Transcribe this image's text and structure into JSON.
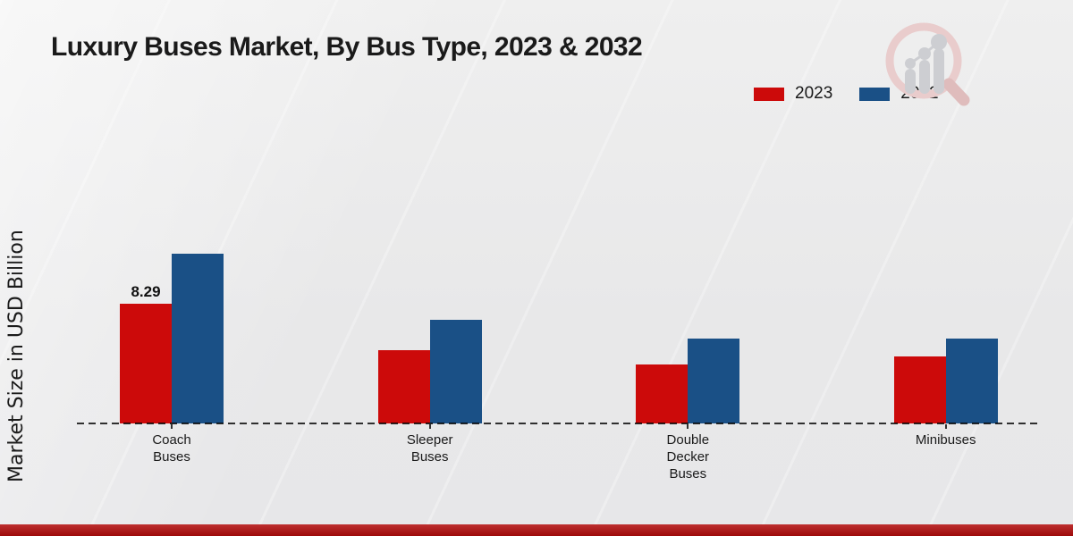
{
  "title": "Luxury Buses Market, By Bus Type, 2023 & 2032",
  "legend": {
    "items": [
      {
        "label": "2023",
        "color": "#cc0a0a"
      },
      {
        "label": "2032",
        "color": "#1a5086"
      }
    ]
  },
  "chart_data": {
    "type": "bar",
    "title": "Luxury Buses Market, By Bus Type, 2023 & 2032",
    "xlabel": "",
    "ylabel": "Market Size in USD Billion",
    "categories": [
      "Coach Buses",
      "Sleeper Buses",
      "Double Decker Buses",
      "Minibuses"
    ],
    "category_label_lines": [
      [
        "Coach",
        "Buses"
      ],
      [
        "Sleeper",
        "Buses"
      ],
      [
        "Double",
        "Decker",
        "Buses"
      ],
      [
        "Minibuses"
      ]
    ],
    "series": [
      {
        "name": "2023",
        "color": "#cc0a0a",
        "values": [
          8.29,
          5.07,
          4.08,
          4.64
        ]
      },
      {
        "name": "2032",
        "color": "#1a5086",
        "values": [
          11.76,
          7.18,
          5.88,
          5.88
        ]
      }
    ],
    "data_labels": {
      "visible": [
        {
          "series": "2023",
          "category": "Coach Buses",
          "text": "8.29"
        }
      ]
    },
    "ylim": [
      0,
      13
    ],
    "grid": false,
    "legend_position": "top-right",
    "baseline_style": "dashed",
    "axis_color": "#333333"
  },
  "watermark": {
    "icon": "magnifier-growth-chart-logo"
  },
  "footer": {
    "bar_color": "#b20b0b"
  }
}
